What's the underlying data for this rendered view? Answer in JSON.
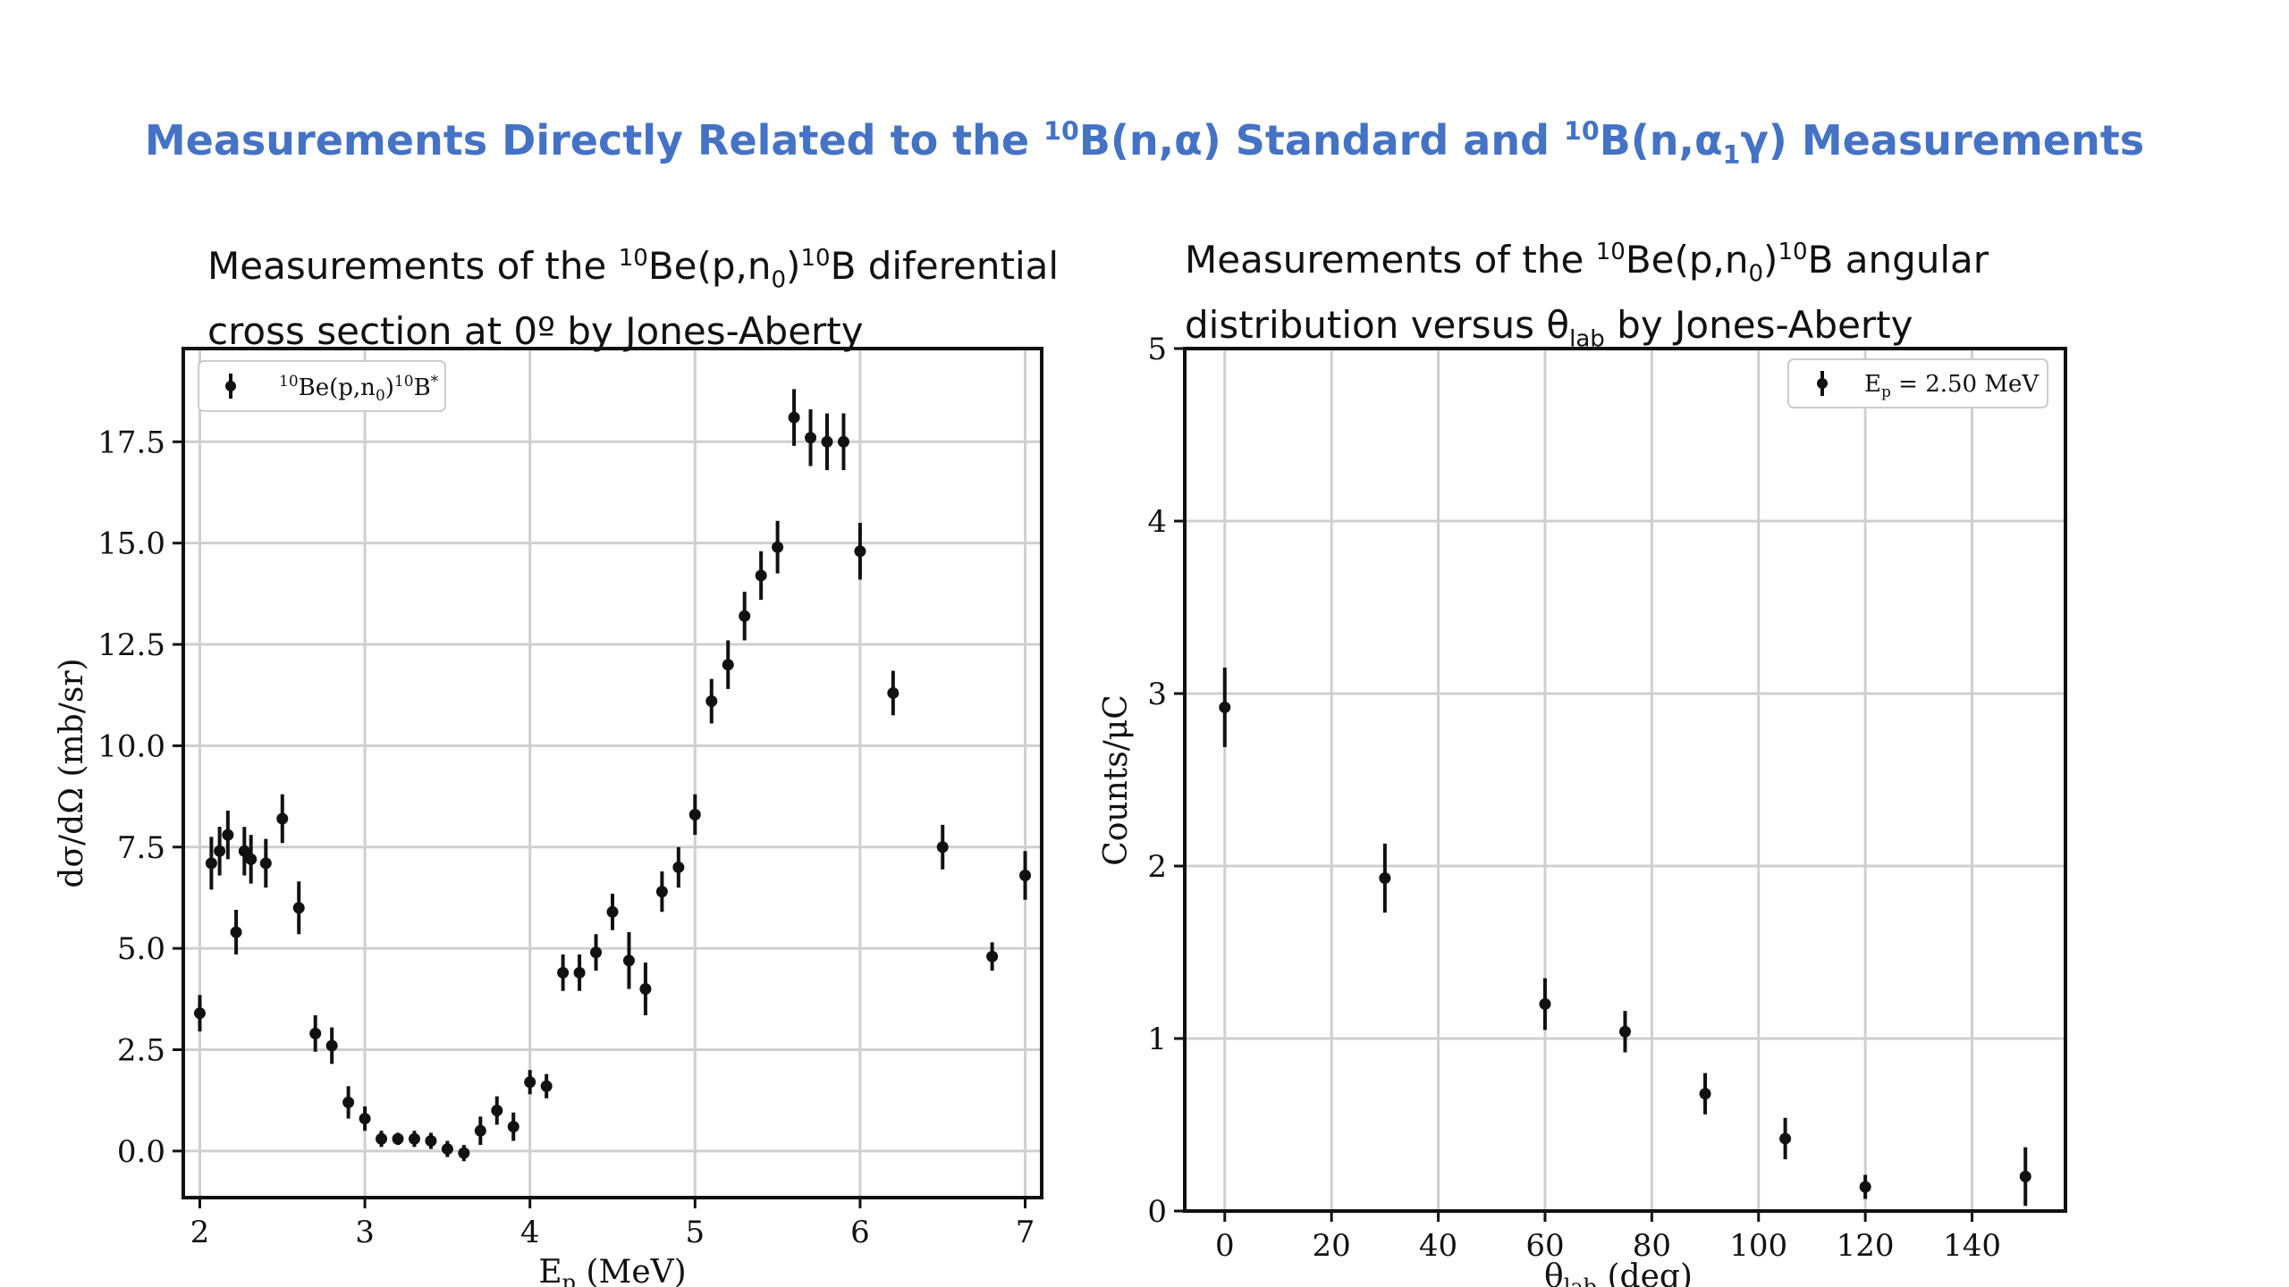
{
  "title": {
    "part1": "Measurements Directly Related to the ",
    "iso1": "10",
    "part2": "B(n,α) Standard and ",
    "iso2": "10",
    "part3": "B(n,α",
    "sub1": "1",
    "part4": "γ) Measurements"
  },
  "left_caption": {
    "text_a": "Measurements of the ",
    "sup_a": "10",
    "text_b": "Be(p,n",
    "sub_b": "0",
    "text_c": ")",
    "sup_c": "10",
    "text_d": "B diferential",
    "line2": "cross section at 0º by Jones-Aberty"
  },
  "right_caption": {
    "text_a": "Measurements of the ",
    "sup_a": "10",
    "text_b": "Be(p,n",
    "sub_b": "0",
    "text_c": ")",
    "sup_c": "10",
    "text_d": "B angular",
    "line2a": "distribution versus θ",
    "line2sub": "lab",
    "line2b": " by Jones-Aberty"
  },
  "chart_data": [
    {
      "type": "scatter",
      "xlabel": "E",
      "xlabel_sub": "p",
      "xlabel_rest": " (MeV)",
      "ylabel": "dσ/dΩ (mb/sr)",
      "xlim": [
        1.9,
        7.1
      ],
      "ylim": [
        -1.15,
        19.8
      ],
      "xticks": [
        "2",
        "3",
        "4",
        "5",
        "6",
        "7"
      ],
      "yticks": [
        "0.0",
        "2.5",
        "5.0",
        "7.5",
        "10.0",
        "12.5",
        "15.0",
        "17.5"
      ],
      "grid": true,
      "legend": {
        "position": "top-left",
        "pre": "10",
        "mid": "Be(p,n",
        "sub": "0",
        "mid2": ")",
        "sup2": "10",
        "post": "B",
        "star": "*"
      },
      "series": [
        {
          "x": [
            2.0,
            2.07,
            2.12,
            2.17,
            2.22,
            2.27,
            2.31,
            2.4,
            2.5,
            2.6,
            2.7,
            2.8,
            2.9,
            3.0,
            3.1,
            3.2,
            3.3,
            3.4,
            3.5,
            3.6,
            3.7,
            3.8,
            3.9,
            4.0,
            4.1,
            4.2,
            4.3,
            4.4,
            4.5,
            4.6,
            4.7,
            4.8,
            4.9,
            5.0,
            5.1,
            5.2,
            5.3,
            5.4,
            5.5,
            5.6,
            5.7,
            5.8,
            5.9,
            6.0,
            6.2,
            6.5,
            6.8,
            7.0
          ],
          "y": [
            3.4,
            7.1,
            7.4,
            7.8,
            5.4,
            7.4,
            7.2,
            7.1,
            8.2,
            6.0,
            2.9,
            2.6,
            1.2,
            0.8,
            0.3,
            0.3,
            0.3,
            0.25,
            0.05,
            -0.05,
            0.5,
            1.0,
            0.6,
            1.7,
            1.6,
            4.4,
            4.4,
            4.9,
            5.9,
            4.7,
            4.0,
            6.4,
            7.0,
            8.3,
            11.1,
            12.0,
            13.2,
            14.2,
            14.9,
            18.1,
            17.6,
            17.5,
            17.5,
            14.8,
            11.3,
            7.5,
            4.8,
            6.8
          ],
          "err": [
            0.45,
            0.65,
            0.6,
            0.6,
            0.55,
            0.6,
            0.6,
            0.6,
            0.6,
            0.65,
            0.45,
            0.45,
            0.4,
            0.3,
            0.2,
            0.15,
            0.2,
            0.2,
            0.2,
            0.2,
            0.35,
            0.35,
            0.35,
            0.3,
            0.3,
            0.45,
            0.45,
            0.45,
            0.45,
            0.7,
            0.65,
            0.5,
            0.5,
            0.5,
            0.55,
            0.6,
            0.6,
            0.6,
            0.65,
            0.7,
            0.7,
            0.7,
            0.7,
            0.7,
            0.55,
            0.55,
            0.35,
            0.6
          ]
        }
      ]
    },
    {
      "type": "scatter",
      "xlabel": "θ",
      "xlabel_sub": "lab",
      "xlabel_rest": " (deg)",
      "ylabel": "Counts/μC",
      "xlim": [
        -7.5,
        157.5
      ],
      "ylim": [
        0,
        5
      ],
      "xticks": [
        "0",
        "20",
        "40",
        "60",
        "80",
        "100",
        "120",
        "140"
      ],
      "yticks": [
        "0",
        "1",
        "2",
        "3",
        "4",
        "5"
      ],
      "grid": true,
      "legend": {
        "position": "top-right",
        "pre": "E",
        "sub": "p",
        "post": " = 2.50 MeV"
      },
      "series": [
        {
          "x": [
            0,
            30,
            60,
            75,
            90,
            105,
            120,
            150
          ],
          "y": [
            2.92,
            1.93,
            1.2,
            1.04,
            0.68,
            0.42,
            0.14,
            0.2
          ],
          "err": [
            0.23,
            0.2,
            0.15,
            0.12,
            0.12,
            0.12,
            0.07,
            0.17
          ]
        }
      ]
    }
  ]
}
